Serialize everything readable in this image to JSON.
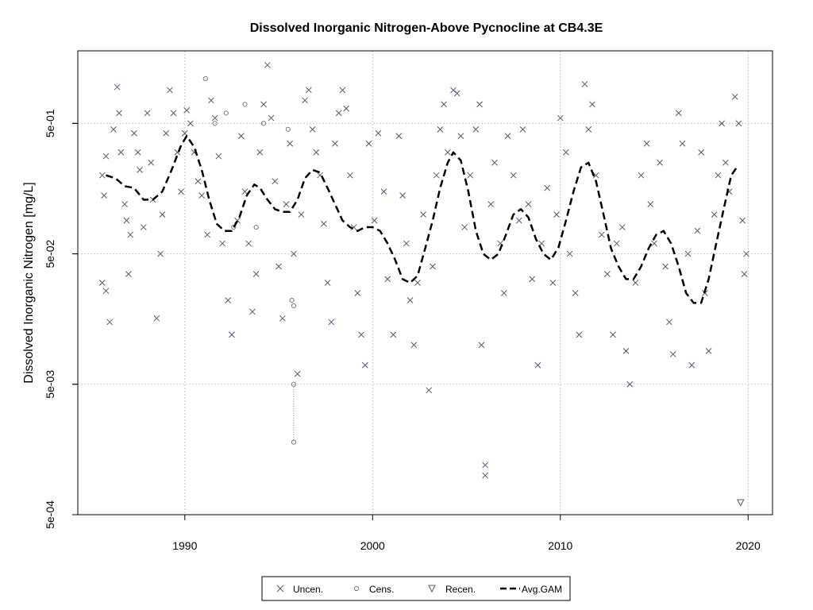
{
  "chart_data": {
    "type": "scatter",
    "title": "Dissolved Inorganic Nitrogen-Above Pycnocline at CB4.3E",
    "xlabel": "",
    "ylabel": "Dissolved Inorganic Nitrogen [mg/L]",
    "xlim": [
      1984.3,
      2021.3
    ],
    "ylim": [
      0.0005,
      1.8
    ],
    "yscale": "log",
    "grid": true,
    "xticks": [
      1990,
      2000,
      2010,
      2020
    ],
    "xtick_labels": [
      "1990",
      "2000",
      "2010",
      "2020"
    ],
    "yticks": [
      0.0005,
      0.005,
      0.05,
      0.5
    ],
    "ytick_labels": [
      "5e-04",
      "5e-03",
      "5e-02",
      "5e-01"
    ],
    "legend_position": "bottom",
    "legend": [
      "Uncen.",
      "Cens.",
      "Recen.",
      "Avg.GAM"
    ],
    "colors": {
      "points": "#4f5b73",
      "censored": "#7a7a7a",
      "gam": "#000000",
      "grid": "#c8c8c8"
    },
    "series": [
      {
        "name": "Uncen.",
        "marker": "x",
        "points": [
          [
            1985.6,
            0.2
          ],
          [
            1985.7,
            0.14
          ],
          [
            1985.8,
            0.28
          ],
          [
            1985.6,
            0.03
          ],
          [
            1985.8,
            0.026
          ],
          [
            1986.0,
            0.015
          ],
          [
            1986.2,
            0.45
          ],
          [
            1986.4,
            0.95
          ],
          [
            1986.5,
            0.6
          ],
          [
            1986.6,
            0.3
          ],
          [
            1986.8,
            0.12
          ],
          [
            1986.9,
            0.09
          ],
          [
            1987.0,
            0.035
          ],
          [
            1987.1,
            0.07
          ],
          [
            1987.3,
            0.42
          ],
          [
            1987.5,
            0.3
          ],
          [
            1987.6,
            0.22
          ],
          [
            1987.8,
            0.08
          ],
          [
            1988.0,
            0.6
          ],
          [
            1988.2,
            0.25
          ],
          [
            1988.3,
            0.13
          ],
          [
            1988.5,
            0.016
          ],
          [
            1988.7,
            0.05
          ],
          [
            1988.8,
            0.1
          ],
          [
            1989.0,
            0.42
          ],
          [
            1989.2,
            0.9
          ],
          [
            1989.4,
            0.6
          ],
          [
            1989.6,
            0.3
          ],
          [
            1989.8,
            0.15
          ],
          [
            1990.0,
            0.42
          ],
          [
            1990.1,
            0.63
          ],
          [
            1990.3,
            0.5
          ],
          [
            1990.5,
            0.3
          ],
          [
            1990.7,
            0.18
          ],
          [
            1990.9,
            0.14
          ],
          [
            1991.2,
            0.07
          ],
          [
            1991.4,
            0.75
          ],
          [
            1991.6,
            0.55
          ],
          [
            1991.8,
            0.28
          ],
          [
            1992.0,
            0.06
          ],
          [
            1992.3,
            0.022
          ],
          [
            1992.5,
            0.012
          ],
          [
            1992.8,
            0.09
          ],
          [
            1993.0,
            0.4
          ],
          [
            1993.2,
            0.15
          ],
          [
            1993.4,
            0.06
          ],
          [
            1993.6,
            0.018
          ],
          [
            1993.8,
            0.035
          ],
          [
            1994.0,
            0.3
          ],
          [
            1994.2,
            0.7
          ],
          [
            1994.4,
            1.4
          ],
          [
            1994.6,
            0.55
          ],
          [
            1994.8,
            0.18
          ],
          [
            1995.0,
            0.04
          ],
          [
            1995.2,
            0.016
          ],
          [
            1995.4,
            0.12
          ],
          [
            1995.6,
            0.35
          ],
          [
            1995.8,
            0.05
          ],
          [
            1996.0,
            0.006
          ],
          [
            1996.2,
            0.1
          ],
          [
            1996.4,
            0.75
          ],
          [
            1996.6,
            0.9
          ],
          [
            1996.8,
            0.45
          ],
          [
            1997.0,
            0.3
          ],
          [
            1997.2,
            0.2
          ],
          [
            1997.4,
            0.085
          ],
          [
            1997.6,
            0.03
          ],
          [
            1997.8,
            0.015
          ],
          [
            1998.0,
            0.35
          ],
          [
            1998.2,
            0.6
          ],
          [
            1998.4,
            0.9
          ],
          [
            1998.6,
            0.65
          ],
          [
            1998.8,
            0.2
          ],
          [
            1999.0,
            0.08
          ],
          [
            1999.2,
            0.025
          ],
          [
            1999.4,
            0.012
          ],
          [
            1999.6,
            0.007
          ],
          [
            1999.8,
            0.35
          ],
          [
            2000.1,
            0.09
          ],
          [
            2000.3,
            0.42
          ],
          [
            2000.6,
            0.15
          ],
          [
            2000.8,
            0.032
          ],
          [
            2001.1,
            0.012
          ],
          [
            2001.4,
            0.4
          ],
          [
            2001.6,
            0.14
          ],
          [
            2001.8,
            0.06
          ],
          [
            2002.0,
            0.022
          ],
          [
            2002.2,
            0.01
          ],
          [
            2002.4,
            0.03
          ],
          [
            2002.7,
            0.1
          ],
          [
            2003.0,
            0.0045
          ],
          [
            2003.2,
            0.04
          ],
          [
            2003.4,
            0.2
          ],
          [
            2003.6,
            0.45
          ],
          [
            2003.8,
            0.7
          ],
          [
            2004.0,
            0.3
          ],
          [
            2004.3,
            0.9
          ],
          [
            2004.5,
            0.85
          ],
          [
            2004.7,
            0.4
          ],
          [
            2004.9,
            0.08
          ],
          [
            2005.2,
            0.2
          ],
          [
            2005.5,
            0.45
          ],
          [
            2005.7,
            0.7
          ],
          [
            2005.8,
            0.01
          ],
          [
            2006.0,
            0.0012
          ],
          [
            2006.0,
            0.001
          ],
          [
            2006.3,
            0.12
          ],
          [
            2006.5,
            0.25
          ],
          [
            2006.8,
            0.06
          ],
          [
            2007.0,
            0.025
          ],
          [
            2007.2,
            0.4
          ],
          [
            2007.5,
            0.2
          ],
          [
            2007.8,
            0.09
          ],
          [
            2008.0,
            0.45
          ],
          [
            2008.3,
            0.12
          ],
          [
            2008.5,
            0.032
          ],
          [
            2008.8,
            0.007
          ],
          [
            2009.0,
            0.06
          ],
          [
            2009.3,
            0.16
          ],
          [
            2009.6,
            0.03
          ],
          [
            2009.8,
            0.1
          ],
          [
            2010.0,
            0.55
          ],
          [
            2010.3,
            0.3
          ],
          [
            2010.5,
            0.05
          ],
          [
            2010.8,
            0.025
          ],
          [
            2011.0,
            0.012
          ],
          [
            2011.3,
            1.0
          ],
          [
            2011.5,
            0.45
          ],
          [
            2011.7,
            0.7
          ],
          [
            2011.9,
            0.2
          ],
          [
            2012.2,
            0.07
          ],
          [
            2012.5,
            0.035
          ],
          [
            2012.8,
            0.012
          ],
          [
            2013.0,
            0.06
          ],
          [
            2013.3,
            0.08
          ],
          [
            2013.5,
            0.009
          ],
          [
            2013.7,
            0.005
          ],
          [
            2014.0,
            0.03
          ],
          [
            2014.3,
            0.2
          ],
          [
            2014.6,
            0.35
          ],
          [
            2014.8,
            0.12
          ],
          [
            2015.0,
            0.06
          ],
          [
            2015.3,
            0.25
          ],
          [
            2015.6,
            0.04
          ],
          [
            2015.8,
            0.015
          ],
          [
            2016.0,
            0.0085
          ],
          [
            2016.3,
            0.6
          ],
          [
            2016.5,
            0.35
          ],
          [
            2016.8,
            0.05
          ],
          [
            2017.0,
            0.007
          ],
          [
            2017.3,
            0.075
          ],
          [
            2017.5,
            0.3
          ],
          [
            2017.7,
            0.025
          ],
          [
            2017.9,
            0.009
          ],
          [
            2018.2,
            0.1
          ],
          [
            2018.4,
            0.2
          ],
          [
            2018.6,
            0.5
          ],
          [
            2018.8,
            0.25
          ],
          [
            2019.0,
            0.15
          ],
          [
            2019.3,
            0.8
          ],
          [
            2019.5,
            0.5
          ],
          [
            2019.7,
            0.09
          ],
          [
            2019.8,
            0.035
          ],
          [
            2019.9,
            0.05
          ]
        ]
      },
      {
        "name": "Cens.",
        "marker": "o",
        "points": [
          [
            1991.1,
            1.1
          ],
          [
            1991.6,
            0.5
          ],
          [
            1992.2,
            0.6
          ],
          [
            1992.6,
            0.08
          ],
          [
            1993.2,
            0.7
          ],
          [
            1993.8,
            0.08
          ],
          [
            1994.2,
            0.5
          ],
          [
            1995.5,
            0.45
          ],
          [
            1995.7,
            0.022
          ],
          [
            1995.8,
            0.02
          ],
          [
            1995.8,
            0.005
          ],
          [
            1995.8,
            0.0018
          ]
        ]
      },
      {
        "name": "Recen.",
        "marker": "triangle-down",
        "points": [
          [
            2019.6,
            0.00062
          ]
        ]
      }
    ],
    "censored_ranges": [
      {
        "x": 1995.8,
        "low": 0.0018,
        "high": 0.005
      }
    ],
    "gam": {
      "name": "Avg.GAM",
      "x": [
        1985.8,
        1986.3,
        1986.8,
        1987.3,
        1987.8,
        1988.3,
        1988.8,
        1989.3,
        1989.8,
        1990.1,
        1990.5,
        1990.9,
        1991.3,
        1991.7,
        1992.1,
        1992.5,
        1992.9,
        1993.3,
        1993.7,
        1994.0,
        1994.4,
        1994.8,
        1995.2,
        1995.6,
        1996.0,
        1996.4,
        1996.8,
        1997.2,
        1997.6,
        1998.0,
        1998.4,
        1998.8,
        1999.2,
        1999.6,
        2000.0,
        2000.4,
        2000.8,
        2001.2,
        2001.6,
        2002.0,
        2002.4,
        2002.8,
        2003.2,
        2003.6,
        2004.0,
        2004.3,
        2004.7,
        2005.1,
        2005.5,
        2005.9,
        2006.3,
        2006.7,
        2007.1,
        2007.5,
        2007.9,
        2008.3,
        2008.7,
        2009.1,
        2009.5,
        2009.9,
        2010.3,
        2010.7,
        2011.1,
        2011.5,
        2011.9,
        2012.3,
        2012.7,
        2013.1,
        2013.5,
        2013.9,
        2014.3,
        2014.7,
        2015.1,
        2015.5,
        2015.9,
        2016.3,
        2016.7,
        2017.1,
        2017.5,
        2017.9,
        2018.3,
        2018.7,
        2019.1,
        2019.4
      ],
      "y": [
        0.2,
        0.19,
        0.165,
        0.16,
        0.13,
        0.13,
        0.15,
        0.22,
        0.34,
        0.4,
        0.33,
        0.22,
        0.13,
        0.085,
        0.075,
        0.075,
        0.095,
        0.14,
        0.17,
        0.16,
        0.13,
        0.11,
        0.105,
        0.105,
        0.13,
        0.19,
        0.22,
        0.21,
        0.16,
        0.12,
        0.09,
        0.08,
        0.075,
        0.08,
        0.08,
        0.075,
        0.06,
        0.045,
        0.032,
        0.03,
        0.034,
        0.055,
        0.09,
        0.16,
        0.25,
        0.3,
        0.26,
        0.15,
        0.075,
        0.05,
        0.045,
        0.05,
        0.07,
        0.1,
        0.11,
        0.095,
        0.065,
        0.05,
        0.045,
        0.056,
        0.09,
        0.15,
        0.23,
        0.25,
        0.18,
        0.1,
        0.055,
        0.04,
        0.032,
        0.032,
        0.04,
        0.055,
        0.07,
        0.075,
        0.06,
        0.04,
        0.025,
        0.021,
        0.021,
        0.032,
        0.06,
        0.11,
        0.2,
        0.23
      ]
    }
  }
}
